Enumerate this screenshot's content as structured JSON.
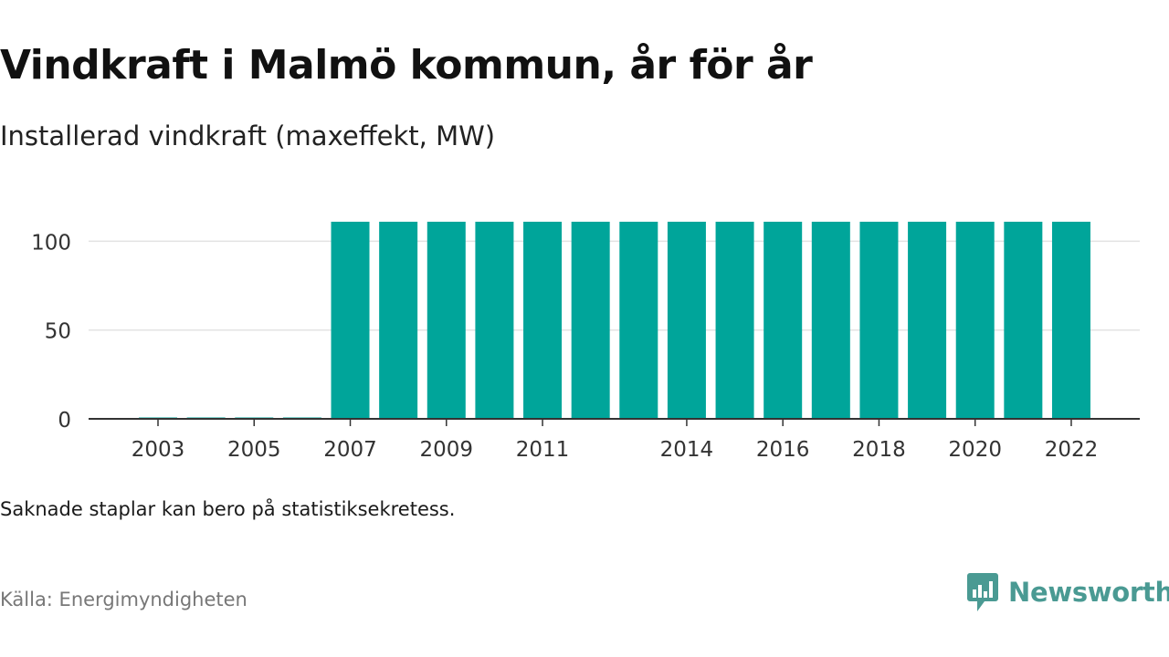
{
  "header": {
    "title": "Vindkraft i Malmö kommun, år för år",
    "subtitle": "Installerad vindkraft (maxeffekt, MW)"
  },
  "footer": {
    "note": "Saknade staplar kan bero på statistiksekretess.",
    "source": "Källa: Energimyndigheten",
    "brand": "Newsworthy",
    "brand_icon": "newsworthy-logo-icon",
    "brand_color": "#4a9a93"
  },
  "chart_data": {
    "type": "bar",
    "title": "Vindkraft i Malmö kommun, år för år",
    "subtitle": "Installerad vindkraft (maxeffekt, MW)",
    "xlabel": "",
    "ylabel": "",
    "categories": [
      "2003",
      "2004",
      "2005",
      "2006",
      "2007",
      "2008",
      "2009",
      "2010",
      "2011",
      "2012",
      "2013",
      "2014",
      "2015",
      "2016",
      "2017",
      "2018",
      "2019",
      "2020",
      "2021",
      "2022"
    ],
    "values": [
      0.2,
      0.2,
      0.2,
      0.2,
      111,
      111,
      111,
      111,
      111,
      111,
      111,
      111,
      111,
      111,
      111,
      111,
      111,
      111,
      111,
      111
    ],
    "x_tick_labels": [
      "2003",
      "2005",
      "2007",
      "2009",
      "2011",
      "2014",
      "2016",
      "2018",
      "2020",
      "2022"
    ],
    "y_ticks": [
      0,
      50,
      100
    ],
    "ylim": [
      0,
      111
    ],
    "bar_color": "#00a59a",
    "grid": true
  }
}
